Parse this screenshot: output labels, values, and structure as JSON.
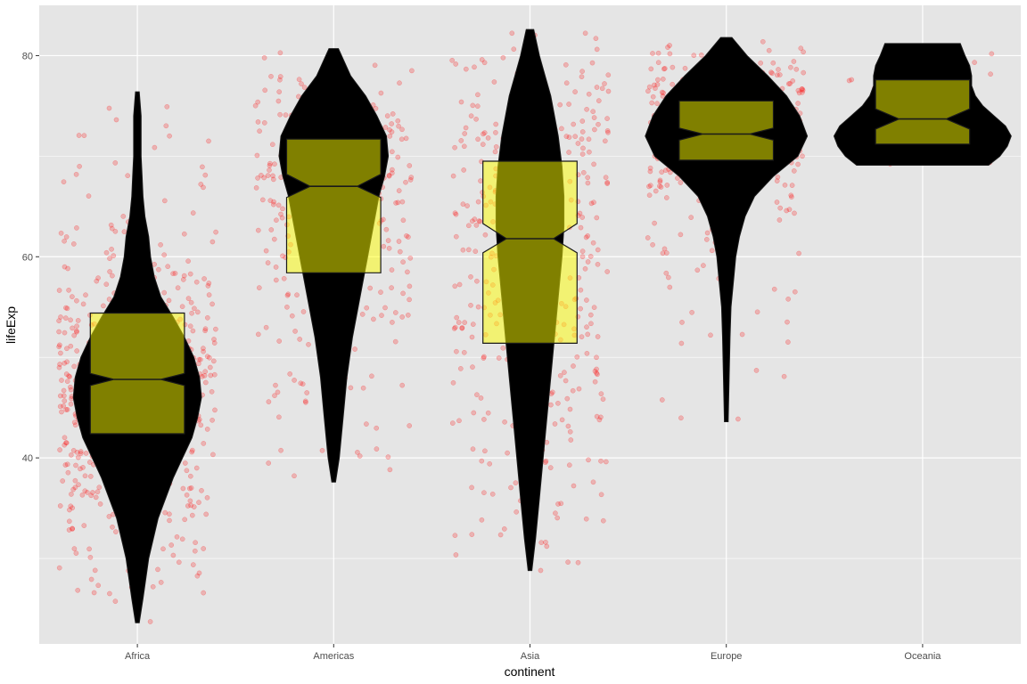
{
  "chart_data": {
    "type": "violin",
    "title": "",
    "xlabel": "continent",
    "ylabel": "lifeExp",
    "categories": [
      "Africa",
      "Americas",
      "Asia",
      "Europe",
      "Oceania"
    ],
    "ylim": [
      21.5,
      85
    ],
    "yticks": [
      40,
      60,
      80
    ],
    "grid": true,
    "colors": {
      "panel": "#e5e5e5",
      "grid": "#ffffff",
      "violin": "#000000",
      "box_fill": "#ffff00",
      "box_alpha": 0.5,
      "points": "#ff0000",
      "point_alpha": 0.22
    },
    "violins": [
      {
        "category": "Africa",
        "min": 23.6,
        "max": 76.4,
        "density": [
          [
            23.6,
            0.02
          ],
          [
            26,
            0.06
          ],
          [
            30,
            0.12
          ],
          [
            34,
            0.22
          ],
          [
            38,
            0.38
          ],
          [
            40,
            0.48
          ],
          [
            42,
            0.58
          ],
          [
            44,
            0.64
          ],
          [
            46,
            0.68
          ],
          [
            48,
            0.66
          ],
          [
            50,
            0.6
          ],
          [
            52,
            0.5
          ],
          [
            54,
            0.38
          ],
          [
            56,
            0.25
          ],
          [
            58,
            0.18
          ],
          [
            60,
            0.14
          ],
          [
            62,
            0.12
          ],
          [
            64,
            0.08
          ],
          [
            66,
            0.06
          ],
          [
            68,
            0.05
          ],
          [
            70,
            0.04
          ],
          [
            72,
            0.04
          ],
          [
            74,
            0.04
          ],
          [
            76.4,
            0.02
          ]
        ],
        "box": {
          "q1": 42.4,
          "median": 47.8,
          "q3": 54.4,
          "notch_low": 47.2,
          "notch_high": 48.4
        }
      },
      {
        "category": "Americas",
        "min": 37.6,
        "max": 80.7,
        "density": [
          [
            37.6,
            0.02
          ],
          [
            40,
            0.06
          ],
          [
            44,
            0.1
          ],
          [
            48,
            0.14
          ],
          [
            52,
            0.2
          ],
          [
            56,
            0.28
          ],
          [
            60,
            0.36
          ],
          [
            63,
            0.42
          ],
          [
            66,
            0.48
          ],
          [
            68,
            0.54
          ],
          [
            70,
            0.58
          ],
          [
            72,
            0.56
          ],
          [
            74,
            0.46
          ],
          [
            76,
            0.34
          ],
          [
            78,
            0.18
          ],
          [
            80.7,
            0.05
          ]
        ],
        "box": {
          "q1": 58.4,
          "median": 67.0,
          "q3": 71.7,
          "notch_low": 65.9,
          "notch_high": 68.2
        }
      },
      {
        "category": "Asia",
        "min": 28.8,
        "max": 82.6,
        "density": [
          [
            28.8,
            0.02
          ],
          [
            32,
            0.06
          ],
          [
            36,
            0.1
          ],
          [
            40,
            0.14
          ],
          [
            44,
            0.18
          ],
          [
            48,
            0.22
          ],
          [
            52,
            0.26
          ],
          [
            56,
            0.3
          ],
          [
            60,
            0.34
          ],
          [
            63,
            0.36
          ],
          [
            66,
            0.36
          ],
          [
            69,
            0.34
          ],
          [
            72,
            0.3
          ],
          [
            74,
            0.26
          ],
          [
            76,
            0.22
          ],
          [
            78,
            0.16
          ],
          [
            80,
            0.1
          ],
          [
            82.6,
            0.04
          ]
        ],
        "box": {
          "q1": 51.4,
          "median": 61.8,
          "q3": 69.5,
          "notch_low": 60.4,
          "notch_high": 63.3
        }
      },
      {
        "category": "Europe",
        "min": 43.6,
        "max": 81.8,
        "density": [
          [
            43.6,
            0.02
          ],
          [
            48,
            0.03
          ],
          [
            52,
            0.04
          ],
          [
            55,
            0.05
          ],
          [
            58,
            0.08
          ],
          [
            60,
            0.1
          ],
          [
            62,
            0.14
          ],
          [
            64,
            0.2
          ],
          [
            66,
            0.3
          ],
          [
            68,
            0.5
          ],
          [
            70,
            0.76
          ],
          [
            72,
            0.86
          ],
          [
            74,
            0.78
          ],
          [
            76,
            0.64
          ],
          [
            78,
            0.44
          ],
          [
            80,
            0.22
          ],
          [
            81.8,
            0.06
          ]
        ],
        "box": {
          "q1": 69.6,
          "median": 72.2,
          "q3": 75.5,
          "notch_low": 71.6,
          "notch_high": 72.8
        }
      },
      {
        "category": "Oceania",
        "min": 69.1,
        "max": 81.2,
        "density": [
          [
            69.1,
            0.7
          ],
          [
            70,
            0.82
          ],
          [
            71,
            0.9
          ],
          [
            72,
            0.94
          ],
          [
            73,
            0.88
          ],
          [
            74,
            0.76
          ],
          [
            75,
            0.64
          ],
          [
            76,
            0.56
          ],
          [
            77,
            0.52
          ],
          [
            78,
            0.52
          ],
          [
            79,
            0.5
          ],
          [
            80,
            0.45
          ],
          [
            81.2,
            0.4
          ]
        ],
        "box": {
          "q1": 71.2,
          "median": 73.7,
          "q3": 77.6,
          "notch_low": 72.7,
          "notch_high": 74.7
        }
      }
    ],
    "points": {
      "count_per_category": [
        624,
        300,
        396,
        360,
        24
      ],
      "seed": 7
    }
  }
}
